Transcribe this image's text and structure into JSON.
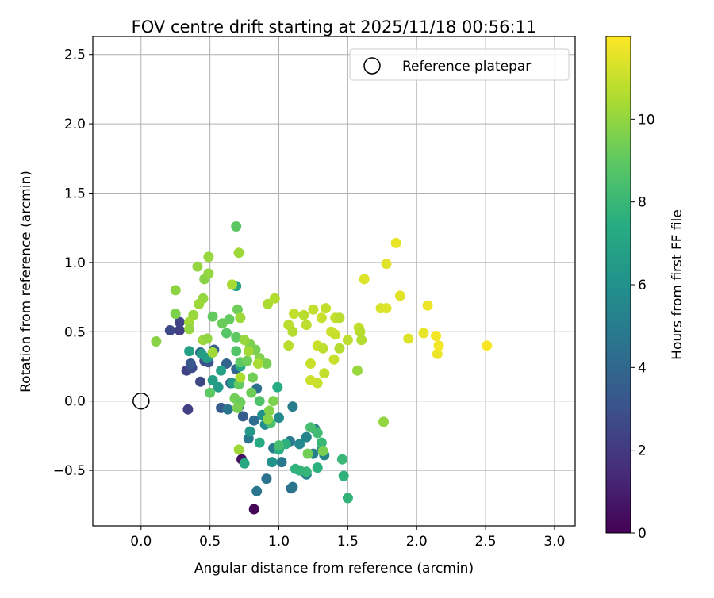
{
  "chart_data": {
    "type": "scatter",
    "title": "FOV centre drift starting at 2025/11/18 00:56:11",
    "xlabel": "Angular distance from reference (arcmin)",
    "ylabel": "Rotation from reference (arcmin)",
    "xlim": [
      -0.35,
      3.15
    ],
    "ylim": [
      -0.9,
      2.63
    ],
    "x_ticks": [
      "0.0",
      "0.5",
      "1.0",
      "1.5",
      "2.0",
      "2.5",
      "3.0"
    ],
    "x_tick_values": [
      0.0,
      0.5,
      1.0,
      1.5,
      2.0,
      2.5,
      3.0
    ],
    "y_ticks": [
      "−0.5",
      "0.0",
      "0.5",
      "1.0",
      "1.5",
      "2.0",
      "2.5"
    ],
    "y_tick_values": [
      -0.5,
      0.0,
      0.5,
      1.0,
      1.5,
      2.0,
      2.5
    ],
    "grid": true,
    "legend": {
      "position": "top-right",
      "entries": [
        "Reference platepar"
      ]
    },
    "reference_point": {
      "label": "Reference platepar",
      "x": 0.0,
      "y": 0.0
    },
    "colorbar": {
      "label": "Hours from first FF file",
      "range": [
        0,
        12
      ],
      "ticks": [
        "0",
        "2",
        "4",
        "6",
        "8",
        "10"
      ],
      "tick_values": [
        0,
        2,
        4,
        6,
        8,
        10
      ],
      "colormap": "viridis"
    },
    "points": [
      {
        "x": 0.82,
        "y": -0.78,
        "h": 0.1
      },
      {
        "x": 0.73,
        "y": -0.42,
        "h": 0.6
      },
      {
        "x": 0.34,
        "y": -0.06,
        "h": 2.3
      },
      {
        "x": 0.33,
        "y": 0.22,
        "h": 2.4
      },
      {
        "x": 0.21,
        "y": 0.51,
        "h": 2.6
      },
      {
        "x": 0.28,
        "y": 0.51,
        "h": 2.2
      },
      {
        "x": 0.28,
        "y": 0.57,
        "h": 2.4
      },
      {
        "x": 0.43,
        "y": 0.14,
        "h": 2.6
      },
      {
        "x": 0.37,
        "y": 0.24,
        "h": 2.8
      },
      {
        "x": 0.46,
        "y": 0.29,
        "h": 2.9
      },
      {
        "x": 0.49,
        "y": 0.28,
        "h": 3.0
      },
      {
        "x": 0.36,
        "y": 0.27,
        "h": 3.3
      },
      {
        "x": 0.58,
        "y": -0.05,
        "h": 3.4
      },
      {
        "x": 0.65,
        "y": 0.13,
        "h": 3.2
      },
      {
        "x": 0.74,
        "y": -0.11,
        "h": 3.5
      },
      {
        "x": 0.53,
        "y": 0.37,
        "h": 3.6
      },
      {
        "x": 0.62,
        "y": 0.27,
        "h": 3.8
      },
      {
        "x": 0.69,
        "y": 0.23,
        "h": 3.9
      },
      {
        "x": 0.43,
        "y": 0.35,
        "h": 4.0
      },
      {
        "x": 0.82,
        "y": -0.14,
        "h": 4.2
      },
      {
        "x": 0.84,
        "y": 0.09,
        "h": 4.4
      },
      {
        "x": 0.71,
        "y": -0.04,
        "h": 4.3
      },
      {
        "x": 0.63,
        "y": -0.06,
        "h": 4.6
      },
      {
        "x": 0.78,
        "y": -0.27,
        "h": 4.8
      },
      {
        "x": 0.84,
        "y": -0.65,
        "h": 4.7
      },
      {
        "x": 0.91,
        "y": -0.56,
        "h": 4.5
      },
      {
        "x": 0.96,
        "y": -0.34,
        "h": 4.9
      },
      {
        "x": 1.09,
        "y": -0.63,
        "h": 4.4
      },
      {
        "x": 1.1,
        "y": -0.62,
        "h": 4.6
      },
      {
        "x": 1.02,
        "y": -0.44,
        "h": 4.8
      },
      {
        "x": 1.08,
        "y": -0.29,
        "h": 4.9
      },
      {
        "x": 1.1,
        "y": -0.04,
        "h": 5.0
      },
      {
        "x": 1.2,
        "y": -0.53,
        "h": 5.1
      },
      {
        "x": 1.25,
        "y": -0.38,
        "h": 5.2
      },
      {
        "x": 1.31,
        "y": -0.35,
        "h": 5.3
      },
      {
        "x": 1.33,
        "y": -0.39,
        "h": 5.4
      },
      {
        "x": 1.26,
        "y": -0.2,
        "h": 5.5
      },
      {
        "x": 1.2,
        "y": -0.26,
        "h": 5.4
      },
      {
        "x": 1.15,
        "y": -0.31,
        "h": 5.6
      },
      {
        "x": 1.0,
        "y": -0.12,
        "h": 5.7
      },
      {
        "x": 0.9,
        "y": -0.17,
        "h": 5.8
      },
      {
        "x": 0.88,
        "y": -0.1,
        "h": 6.0
      },
      {
        "x": 0.95,
        "y": -0.44,
        "h": 6.1
      },
      {
        "x": 0.79,
        "y": -0.22,
        "h": 6.3
      },
      {
        "x": 0.66,
        "y": 0.13,
        "h": 6.4
      },
      {
        "x": 0.56,
        "y": 0.1,
        "h": 6.5
      },
      {
        "x": 0.52,
        "y": 0.15,
        "h": 6.6
      },
      {
        "x": 0.48,
        "y": 0.31,
        "h": 6.7
      },
      {
        "x": 0.44,
        "y": 0.34,
        "h": 6.6
      },
      {
        "x": 0.35,
        "y": 0.36,
        "h": 6.8
      },
      {
        "x": 0.58,
        "y": 0.22,
        "h": 6.9
      },
      {
        "x": 0.69,
        "y": 0.83,
        "h": 7.0
      },
      {
        "x": 0.72,
        "y": 0.25,
        "h": 7.1
      },
      {
        "x": 0.75,
        "y": -0.45,
        "h": 7.2
      },
      {
        "x": 0.86,
        "y": -0.3,
        "h": 7.3
      },
      {
        "x": 0.99,
        "y": 0.1,
        "h": 7.4
      },
      {
        "x": 1.0,
        "y": -0.35,
        "h": 7.5
      },
      {
        "x": 1.05,
        "y": -0.31,
        "h": 7.6
      },
      {
        "x": 1.12,
        "y": -0.49,
        "h": 7.7
      },
      {
        "x": 1.15,
        "y": -0.5,
        "h": 7.8
      },
      {
        "x": 1.2,
        "y": -0.51,
        "h": 7.9
      },
      {
        "x": 1.28,
        "y": -0.48,
        "h": 7.6
      },
      {
        "x": 1.47,
        "y": -0.54,
        "h": 7.7
      },
      {
        "x": 1.5,
        "y": -0.7,
        "h": 7.8
      },
      {
        "x": 1.46,
        "y": -0.42,
        "h": 8.0
      },
      {
        "x": 1.31,
        "y": -0.3,
        "h": 8.0
      },
      {
        "x": 1.28,
        "y": -0.23,
        "h": 8.2
      },
      {
        "x": 1.23,
        "y": -0.19,
        "h": 8.4
      },
      {
        "x": 1.0,
        "y": -0.32,
        "h": 8.3
      },
      {
        "x": 0.94,
        "y": -0.16,
        "h": 8.5
      },
      {
        "x": 0.86,
        "y": 0.0,
        "h": 8.6
      },
      {
        "x": 0.69,
        "y": 0.36,
        "h": 8.7
      },
      {
        "x": 0.62,
        "y": 0.49,
        "h": 8.8
      },
      {
        "x": 0.69,
        "y": 1.26,
        "h": 8.9
      },
      {
        "x": 0.72,
        "y": 0.28,
        "h": 9.0
      },
      {
        "x": 0.5,
        "y": 0.06,
        "h": 9.0
      },
      {
        "x": 0.52,
        "y": 0.61,
        "h": 9.1
      },
      {
        "x": 0.59,
        "y": 0.56,
        "h": 9.2
      },
      {
        "x": 0.69,
        "y": 0.46,
        "h": 9.0
      },
      {
        "x": 0.64,
        "y": 0.59,
        "h": 9.1
      },
      {
        "x": 0.7,
        "y": 0.66,
        "h": 9.3
      },
      {
        "x": 0.71,
        "y": 0.12,
        "h": 9.1
      },
      {
        "x": 0.68,
        "y": 0.02,
        "h": 9.4
      },
      {
        "x": 0.72,
        "y": -0.01,
        "h": 9.2
      },
      {
        "x": 0.7,
        "y": -0.05,
        "h": 9.5
      },
      {
        "x": 0.8,
        "y": 0.06,
        "h": 9.3
      },
      {
        "x": 0.81,
        "y": 0.17,
        "h": 9.4
      },
      {
        "x": 0.77,
        "y": 0.29,
        "h": 9.3
      },
      {
        "x": 0.79,
        "y": 0.41,
        "h": 9.6
      },
      {
        "x": 0.83,
        "y": 0.37,
        "h": 9.5
      },
      {
        "x": 0.86,
        "y": 0.31,
        "h": 9.7
      },
      {
        "x": 0.91,
        "y": 0.27,
        "h": 9.5
      },
      {
        "x": 0.96,
        "y": 0.0,
        "h": 9.6
      },
      {
        "x": 0.93,
        "y": -0.07,
        "h": 9.7
      },
      {
        "x": 0.92,
        "y": -0.13,
        "h": 9.8
      },
      {
        "x": 1.21,
        "y": -0.38,
        "h": 9.4
      },
      {
        "x": 1.32,
        "y": -0.36,
        "h": 9.5
      },
      {
        "x": 1.76,
        "y": -0.15,
        "h": 10.0
      },
      {
        "x": 1.57,
        "y": 0.22,
        "h": 10.1
      },
      {
        "x": 0.11,
        "y": 0.43,
        "h": 9.8
      },
      {
        "x": 0.25,
        "y": 0.63,
        "h": 9.6
      },
      {
        "x": 0.25,
        "y": 0.8,
        "h": 9.9
      },
      {
        "x": 0.41,
        "y": 0.97,
        "h": 10.0
      },
      {
        "x": 0.46,
        "y": 0.88,
        "h": 9.8
      },
      {
        "x": 0.49,
        "y": 0.92,
        "h": 10.0
      },
      {
        "x": 0.49,
        "y": 1.04,
        "h": 10.1
      },
      {
        "x": 0.71,
        "y": 1.07,
        "h": 10.2
      },
      {
        "x": 0.45,
        "y": 0.74,
        "h": 10.0
      },
      {
        "x": 0.42,
        "y": 0.7,
        "h": 10.2
      },
      {
        "x": 0.38,
        "y": 0.62,
        "h": 10.1
      },
      {
        "x": 0.35,
        "y": 0.57,
        "h": 10.3
      },
      {
        "x": 0.35,
        "y": 0.52,
        "h": 10.0
      },
      {
        "x": 0.45,
        "y": 0.44,
        "h": 10.2
      },
      {
        "x": 0.48,
        "y": 0.45,
        "h": 10.0
      },
      {
        "x": 0.52,
        "y": 0.35,
        "h": 10.3
      },
      {
        "x": 0.66,
        "y": 0.84,
        "h": 10.4
      },
      {
        "x": 0.72,
        "y": 0.6,
        "h": 10.2
      },
      {
        "x": 0.75,
        "y": 0.44,
        "h": 10.1
      },
      {
        "x": 0.78,
        "y": 0.36,
        "h": 10.3
      },
      {
        "x": 0.85,
        "y": 0.27,
        "h": 10.4
      },
      {
        "x": 0.72,
        "y": 0.17,
        "h": 10.5
      },
      {
        "x": 0.71,
        "y": -0.35,
        "h": 10.2
      },
      {
        "x": 0.92,
        "y": 0.7,
        "h": 10.5
      },
      {
        "x": 0.97,
        "y": 0.74,
        "h": 10.6
      },
      {
        "x": 1.07,
        "y": 0.4,
        "h": 10.7
      },
      {
        "x": 1.07,
        "y": 0.55,
        "h": 10.8
      },
      {
        "x": 1.1,
        "y": 0.5,
        "h": 10.6
      },
      {
        "x": 1.11,
        "y": 0.63,
        "h": 10.9
      },
      {
        "x": 1.18,
        "y": 0.62,
        "h": 10.7
      },
      {
        "x": 1.2,
        "y": 0.55,
        "h": 10.8
      },
      {
        "x": 1.25,
        "y": 0.66,
        "h": 10.9
      },
      {
        "x": 1.28,
        "y": 0.4,
        "h": 11.0
      },
      {
        "x": 1.32,
        "y": 0.38,
        "h": 10.8
      },
      {
        "x": 1.31,
        "y": 0.6,
        "h": 11.0
      },
      {
        "x": 1.34,
        "y": 0.67,
        "h": 10.9
      },
      {
        "x": 1.38,
        "y": 0.5,
        "h": 11.1
      },
      {
        "x": 1.41,
        "y": 0.6,
        "h": 10.9
      },
      {
        "x": 1.44,
        "y": 0.6,
        "h": 10.7
      },
      {
        "x": 1.41,
        "y": 0.48,
        "h": 11.0
      },
      {
        "x": 1.44,
        "y": 0.38,
        "h": 10.6
      },
      {
        "x": 1.4,
        "y": 0.3,
        "h": 11.0
      },
      {
        "x": 1.5,
        "y": 0.44,
        "h": 10.8
      },
      {
        "x": 1.33,
        "y": 0.2,
        "h": 10.9
      },
      {
        "x": 1.28,
        "y": 0.13,
        "h": 11.0
      },
      {
        "x": 1.23,
        "y": 0.15,
        "h": 11.1
      },
      {
        "x": 1.23,
        "y": 0.27,
        "h": 11.0
      },
      {
        "x": 1.58,
        "y": 0.53,
        "h": 10.9
      },
      {
        "x": 1.59,
        "y": 0.5,
        "h": 10.7
      },
      {
        "x": 1.6,
        "y": 0.44,
        "h": 10.6
      },
      {
        "x": 1.62,
        "y": 0.88,
        "h": 11.4
      },
      {
        "x": 1.74,
        "y": 0.67,
        "h": 11.3
      },
      {
        "x": 1.78,
        "y": 0.67,
        "h": 11.4
      },
      {
        "x": 1.78,
        "y": 0.99,
        "h": 11.5
      },
      {
        "x": 1.85,
        "y": 1.14,
        "h": 11.6
      },
      {
        "x": 1.88,
        "y": 0.76,
        "h": 11.5
      },
      {
        "x": 1.94,
        "y": 0.45,
        "h": 11.4
      },
      {
        "x": 2.05,
        "y": 0.49,
        "h": 11.6
      },
      {
        "x": 2.08,
        "y": 0.69,
        "h": 11.7
      },
      {
        "x": 2.14,
        "y": 0.47,
        "h": 11.8
      },
      {
        "x": 2.15,
        "y": 0.34,
        "h": 11.7
      },
      {
        "x": 2.16,
        "y": 0.4,
        "h": 11.8
      },
      {
        "x": 2.51,
        "y": 0.4,
        "h": 11.9
      }
    ]
  }
}
